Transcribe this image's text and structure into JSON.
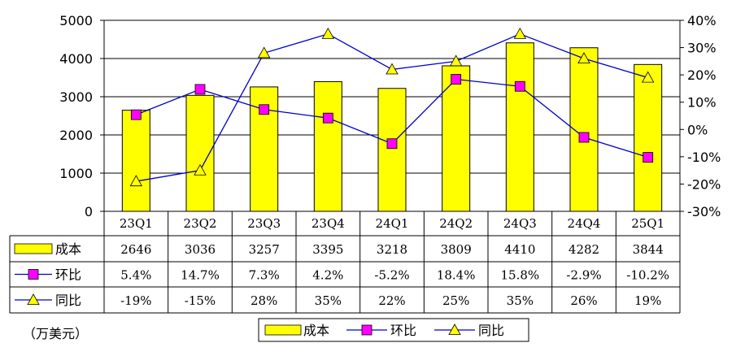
{
  "chart_data": {
    "type": "bar",
    "categories": [
      "23Q1",
      "23Q2",
      "23Q3",
      "23Q4",
      "24Q1",
      "24Q2",
      "24Q3",
      "24Q4",
      "25Q1"
    ],
    "series": [
      {
        "name": "成本",
        "type": "bar",
        "axis": "left",
        "values": [
          2646,
          3036,
          3257,
          3395,
          3218,
          3809,
          4410,
          4282,
          3844
        ],
        "labels": [
          "2646",
          "3036",
          "3257",
          "3395",
          "3218",
          "3809",
          "4410",
          "4282",
          "3844"
        ]
      },
      {
        "name": "环比",
        "type": "line",
        "axis": "right",
        "marker": "square",
        "values": [
          5.4,
          14.7,
          7.3,
          4.2,
          -5.2,
          18.4,
          15.8,
          -2.9,
          -10.2
        ],
        "labels": [
          "5.4%",
          "14.7%",
          "7.3%",
          "4.2%",
          "-5.2%",
          "18.4%",
          "15.8%",
          "-2.9%",
          "-10.2%"
        ]
      },
      {
        "name": "同比",
        "type": "line",
        "axis": "right",
        "marker": "triangle",
        "values": [
          -19,
          -15,
          28,
          35,
          22,
          25,
          35,
          26,
          19
        ],
        "labels": [
          "-19%",
          "-15%",
          "28%",
          "35%",
          "22%",
          "25%",
          "35%",
          "26%",
          "19%"
        ]
      }
    ],
    "y_left": {
      "range": [
        0,
        5000
      ],
      "ticks": [
        "0",
        "1000",
        "2000",
        "3000",
        "4000",
        "5000"
      ]
    },
    "y_right": {
      "range": [
        -30,
        40
      ],
      "ticks": [
        "-30%",
        "-20%",
        "-10%",
        "0%",
        "10%",
        "20%",
        "30%",
        "40%"
      ]
    },
    "unit_note": "（万美元）",
    "grid": true,
    "legend_position": "bottom",
    "data_table": true
  },
  "colors": {
    "bar": "#ffff00",
    "bar_edge": "#000000",
    "qoq": "#0000cc",
    "qoq_marker": "#ff00ff",
    "yoy": "#0000cc",
    "yoy_marker": "#ffff00"
  }
}
